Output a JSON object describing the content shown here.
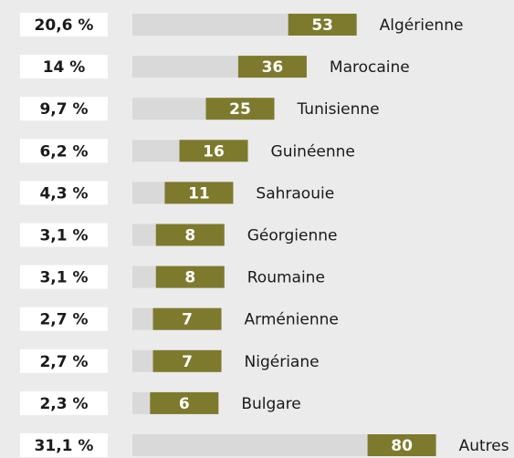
{
  "chart_data": {
    "type": "bar",
    "categories": [
      "Algérienne",
      "Marocaine",
      "Tunisienne",
      "Guinéenne",
      "Sahraouie",
      "Géorgienne",
      "Roumaine",
      "Arménienne",
      "Nigériane",
      "Bulgare",
      "Autres"
    ],
    "values": [
      53,
      36,
      25,
      16,
      11,
      8,
      8,
      7,
      7,
      6,
      80
    ],
    "shares": [
      20.6,
      14,
      9.7,
      6.2,
      4.3,
      3.1,
      3.1,
      2.7,
      2.7,
      2.3,
      31.1
    ],
    "share_labels": [
      "20,6 %",
      "14 %",
      "9,7 %",
      "6,2 %",
      "4,3 %",
      "3,1 %",
      "3,1 %",
      "2,7 %",
      "2,7 %",
      "2,3 %",
      "31,1 %"
    ],
    "color": "#7d7a2e",
    "track_color": "#d9d9d9"
  }
}
